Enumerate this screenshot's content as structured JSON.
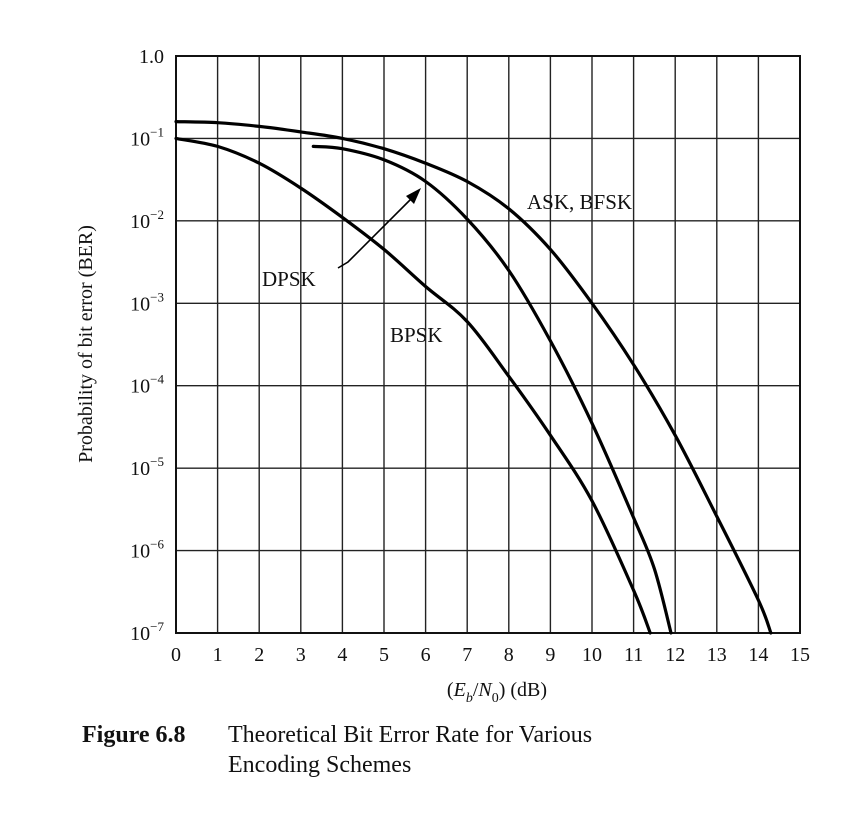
{
  "chart_data": {
    "type": "line",
    "title": "",
    "xlabel": {
      "E": "E",
      "b": "b",
      "slash": "/",
      "N": "N",
      "zero": "0",
      "unit": " (dB)"
    },
    "ylabel": "Probability of bit error (BER)",
    "xlim": [
      0,
      15
    ],
    "ylim": [
      1e-07,
      1
    ],
    "y_scale": "log",
    "grid": true,
    "x_ticks": [
      "0",
      "1",
      "2",
      "3",
      "4",
      "5",
      "6",
      "7",
      "8",
      "9",
      "10",
      "11",
      "12",
      "13",
      "14",
      "15"
    ],
    "y_ticks": [
      {
        "value": 1,
        "base": "1.0",
        "exp": ""
      },
      {
        "value": 0.1,
        "base": "10",
        "exp": "−1"
      },
      {
        "value": 0.01,
        "base": "10",
        "exp": "−2"
      },
      {
        "value": 0.001,
        "base": "10",
        "exp": "−3"
      },
      {
        "value": 0.0001,
        "base": "10",
        "exp": "−4"
      },
      {
        "value": 1e-05,
        "base": "10",
        "exp": "−5"
      },
      {
        "value": 1e-06,
        "base": "10",
        "exp": "−6"
      },
      {
        "value": 1e-07,
        "base": "10",
        "exp": "−7"
      }
    ],
    "series": [
      {
        "name": "ASK, BFSK",
        "x": [
          0,
          1,
          2,
          3,
          4,
          5,
          6,
          7,
          8,
          9,
          10,
          11,
          12,
          13,
          14,
          14.3
        ],
        "y": [
          0.16,
          0.155,
          0.14,
          0.12,
          0.1,
          0.075,
          0.05,
          0.03,
          0.014,
          0.0045,
          0.001,
          0.00018,
          2.5e-05,
          2.6e-06,
          2.5e-07,
          1e-07
        ]
      },
      {
        "name": "DPSK",
        "x": [
          3.3,
          4,
          5,
          6,
          7,
          8,
          9,
          10,
          11,
          11.5,
          11.9
        ],
        "y": [
          0.08,
          0.075,
          0.055,
          0.03,
          0.0105,
          0.0025,
          0.00035,
          3.5e-05,
          2.5e-06,
          6e-07,
          1e-07
        ]
      },
      {
        "name": "BPSK",
        "x": [
          0,
          1,
          2,
          3,
          4,
          5,
          6,
          7,
          8,
          9,
          10,
          11,
          11.4
        ],
        "y": [
          0.1,
          0.08,
          0.05,
          0.025,
          0.011,
          0.0045,
          0.0016,
          0.0006,
          0.00013,
          2.5e-05,
          4e-06,
          3.3e-07,
          1e-07
        ]
      }
    ],
    "annotations": [
      {
        "text": "ASK, BFSK",
        "series": "ASK, BFSK"
      },
      {
        "text": "DPSK",
        "series": "DPSK",
        "arrow": true
      },
      {
        "text": "BPSK",
        "series": "BPSK"
      }
    ]
  },
  "caption": {
    "number": "Figure 6.8",
    "line1": "Theoretical Bit Error Rate for Various",
    "line2": "Encoding Schemes"
  }
}
